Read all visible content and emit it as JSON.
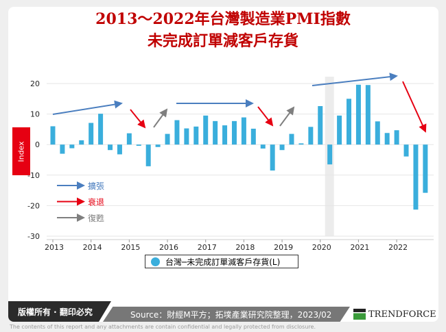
{
  "title_line1": "2013～2022年台灣製造業PMI指數",
  "title_line2": "未完成訂單減客戶存貨",
  "chart_data": {
    "type": "bar",
    "title": "2013～2022年台灣製造業PMI指數 未完成訂單減客戶存貨",
    "ylabel": "Index",
    "ylim": [
      -30,
      20
    ],
    "yticks": [
      20,
      10,
      0,
      -10,
      -20,
      -30
    ],
    "xticks": [
      "2013",
      "2014",
      "2015",
      "2016",
      "2017",
      "2018",
      "2019",
      "2020",
      "2021",
      "2022"
    ],
    "grid": true,
    "legend_placement": "bottom",
    "series": [
      {
        "name": "台灣─未完成訂單減客戶存貨(L)",
        "color": "#3aaedc",
        "x": [
          "2013Q1",
          "2013Q2",
          "2013Q3",
          "2013Q4",
          "2014Q1",
          "2014Q2",
          "2014Q3",
          "2014Q4",
          "2015Q1",
          "2015Q2",
          "2015Q3",
          "2015Q4",
          "2016Q1",
          "2016Q2",
          "2016Q3",
          "2016Q4",
          "2017Q1",
          "2017Q2",
          "2017Q3",
          "2017Q4",
          "2018Q1",
          "2018Q2",
          "2018Q3",
          "2018Q4",
          "2019Q1",
          "2019Q2",
          "2019Q3",
          "2019Q4",
          "2020Q1",
          "2020Q2",
          "2020Q3",
          "2020Q4",
          "2021Q1",
          "2021Q2",
          "2021Q3",
          "2021Q4",
          "2022Q1",
          "2022Q2",
          "2022Q3",
          "2022Q4"
        ],
        "values": [
          6.0,
          -3.0,
          -1.2,
          1.4,
          7.1,
          10.1,
          -1.8,
          -3.2,
          3.7,
          -0.4,
          -7.1,
          -0.8,
          3.5,
          8.0,
          5.3,
          5.9,
          9.5,
          7.7,
          6.3,
          7.7,
          8.9,
          5.2,
          -1.3,
          -8.5,
          -1.8,
          3.5,
          0.4,
          5.8,
          12.6,
          -6.5,
          9.5,
          15.0,
          19.6,
          19.5,
          7.6,
          3.8,
          4.7,
          -3.9,
          -21.3,
          -15.8
        ]
      }
    ],
    "shaded_period": "2020Q2",
    "annotations": [
      {
        "type": "擴張",
        "color": "#4a7ebf",
        "from": "2013Q1",
        "to": "2014Q4"
      },
      {
        "type": "衰退",
        "color": "#e60012",
        "from": "2015Q1",
        "to": "2015Q3"
      },
      {
        "type": "復甦",
        "color": "#7f7f7f",
        "from": "2015Q4",
        "to": "2016Q1"
      },
      {
        "type": "擴張",
        "color": "#4a7ebf",
        "from": "2016Q2",
        "to": "2018Q2"
      },
      {
        "type": "衰退",
        "color": "#e60012",
        "from": "2018Q3",
        "to": "2018Q4"
      },
      {
        "type": "復甦",
        "color": "#7f7f7f",
        "from": "2019Q1",
        "to": "2019Q2"
      },
      {
        "type": "擴張",
        "color": "#4a7ebf",
        "from": "2019Q4",
        "to": "2022Q1"
      },
      {
        "type": "衰退",
        "color": "#e60012",
        "from": "2022Q1",
        "to": "2022Q4"
      }
    ],
    "arrow_legend": [
      {
        "label": "擴張",
        "color": "#4a7ebf"
      },
      {
        "label": "衰退",
        "color": "#e60012"
      },
      {
        "label": "復甦",
        "color": "#7f7f7f"
      }
    ]
  },
  "footer": {
    "copyright": "版權所有 · 翻印必究",
    "source": "Source：財經M平方；拓墣產業研究院整理，2023/02",
    "logo": "TRENDFORCE",
    "disclaimer": "The contents of this report and any attachments are contain confidential and legally protected from disclosure."
  }
}
